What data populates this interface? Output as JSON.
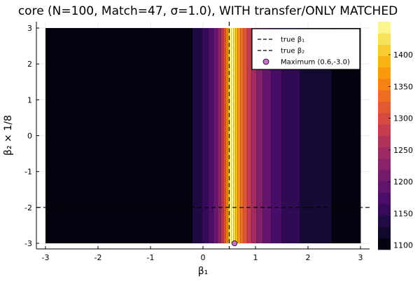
{
  "chart_data": {
    "type": "heatmap",
    "title": "core (N=100, Match=47, σ=1.0), WITH transfer/ONLY MATCHED",
    "xlabel": "β₁",
    "ylabel": "β₂ × 1/8",
    "xlim": [
      -3,
      3
    ],
    "ylim": [
      -3,
      3
    ],
    "x_ticks": [
      "-3",
      "-2",
      "-1",
      "0",
      "1",
      "2",
      "3"
    ],
    "y_ticks": [
      "-3",
      "-2",
      "-1",
      "0",
      "1",
      "2",
      "3"
    ],
    "x_tick_values": [
      -3,
      -2,
      -1,
      0,
      1,
      2,
      3
    ],
    "y_tick_values": [
      -3,
      -2,
      -1,
      0,
      1,
      2,
      3
    ],
    "grid": true,
    "z_varies_along": "x",
    "contour_bands": [
      {
        "x_from": -3.0,
        "x_to": -0.2,
        "z": 1100
      },
      {
        "x_from": -0.2,
        "x_to": -0.02,
        "z": 1135
      },
      {
        "x_from": -0.02,
        "x_to": 0.1,
        "z": 1155
      },
      {
        "x_from": 0.1,
        "x_to": 0.2,
        "z": 1175
      },
      {
        "x_from": 0.2,
        "x_to": 0.28,
        "z": 1200
      },
      {
        "x_from": 0.28,
        "x_to": 0.34,
        "z": 1230
      },
      {
        "x_from": 0.34,
        "x_to": 0.39,
        "z": 1265
      },
      {
        "x_from": 0.39,
        "x_to": 0.43,
        "z": 1305
      },
      {
        "x_from": 0.43,
        "x_to": 0.47,
        "z": 1345
      },
      {
        "x_from": 0.47,
        "x_to": 0.5,
        "z": 1390
      },
      {
        "x_from": 0.5,
        "x_to": 0.54,
        "z": 1445
      },
      {
        "x_from": 0.54,
        "x_to": 0.58,
        "z": 1445
      },
      {
        "x_from": 0.58,
        "x_to": 0.62,
        "z": 1420
      },
      {
        "x_from": 0.62,
        "x_to": 0.66,
        "z": 1395
      },
      {
        "x_from": 0.66,
        "x_to": 0.71,
        "z": 1370
      },
      {
        "x_from": 0.71,
        "x_to": 0.77,
        "z": 1340
      },
      {
        "x_from": 0.77,
        "x_to": 0.84,
        "z": 1310
      },
      {
        "x_from": 0.84,
        "x_to": 0.92,
        "z": 1280
      },
      {
        "x_from": 0.92,
        "x_to": 1.02,
        "z": 1250
      },
      {
        "x_from": 1.02,
        "x_to": 1.14,
        "z": 1220
      },
      {
        "x_from": 1.14,
        "x_to": 1.3,
        "z": 1195
      },
      {
        "x_from": 1.3,
        "x_to": 1.5,
        "z": 1170
      },
      {
        "x_from": 1.5,
        "x_to": 1.85,
        "z": 1150
      },
      {
        "x_from": 1.85,
        "x_to": 2.45,
        "z": 1125
      },
      {
        "x_from": 2.45,
        "x_to": 3.0,
        "z": 1100
      }
    ],
    "true_beta1_x": 0.5,
    "true_beta2_y": -2.0,
    "maximum_point": {
      "x": 0.6,
      "y": -3.0
    },
    "legend_position": "top-right",
    "series": [
      {
        "name": "true β₁",
        "style": "dashed",
        "color": "#000000"
      },
      {
        "name": "true β₂",
        "style": "dashed",
        "color": "#000000"
      },
      {
        "name": "Maximum (0.6,-3.0)",
        "style": "marker",
        "color": "#c86fd0"
      }
    ],
    "colorbar": {
      "min": 1093,
      "max": 1452,
      "tick_values": [
        1100,
        1150,
        1200,
        1250,
        1300,
        1350,
        1400
      ],
      "tick_labels": [
        "1100",
        "1150",
        "1200",
        "1250",
        "1300",
        "1350",
        "1400"
      ],
      "levels": 20,
      "colormap": "inferno"
    }
  }
}
